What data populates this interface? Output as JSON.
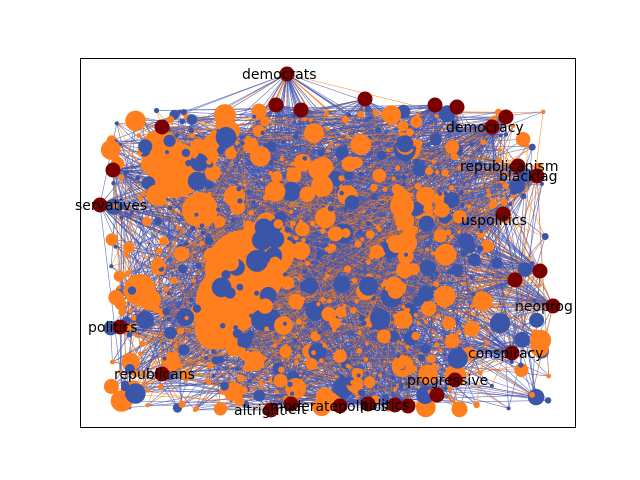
{
  "colors": {
    "edge_blue": "#4457b3",
    "edge_orange": "#ff7f0e",
    "node_blue": "#3b56a8",
    "node_orange": "#ff7f1f",
    "hub": "#7a0000",
    "frame": "#000000"
  },
  "hubs": [
    {
      "id": "democrats",
      "label": "democrats"
    },
    {
      "id": "democracy",
      "label": "democracy"
    },
    {
      "id": "republicanism",
      "label": "republicanism"
    },
    {
      "id": "blacklag",
      "label": "blacklag"
    },
    {
      "id": "conservatives",
      "label": "servatives"
    },
    {
      "id": "uspolitics",
      "label": "uspolitics"
    },
    {
      "id": "neoprog",
      "label": "neoprog"
    },
    {
      "id": "politics",
      "label": "politics"
    },
    {
      "id": "conspiracy",
      "label": "conspiracy"
    },
    {
      "id": "republicans",
      "label": "republicans"
    },
    {
      "id": "progressive",
      "label": "progressive"
    },
    {
      "id": "altright",
      "label": "altright"
    },
    {
      "id": "altleft",
      "label": "left"
    },
    {
      "id": "moderatepolitics",
      "label": "moderatepolitics"
    },
    {
      "id": "politics2",
      "label": "politics"
    }
  ],
  "unlabeled_hub_count": 9
}
